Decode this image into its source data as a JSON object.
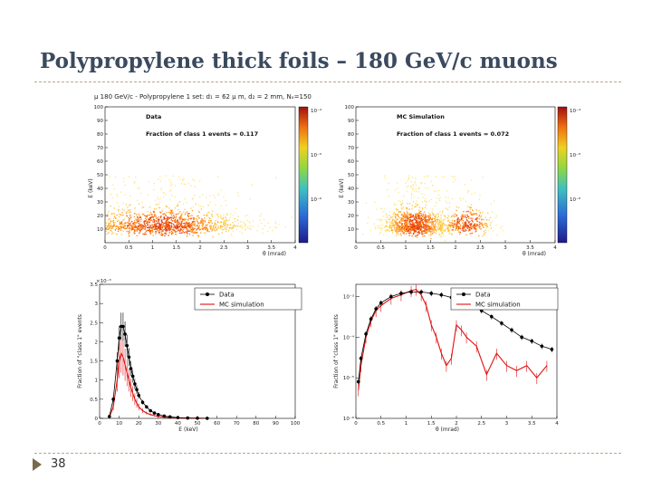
{
  "slide": {
    "title": "Polypropylene thick foils – 180 GeV/c muons",
    "number": "38",
    "plot_header": "μ 180 GeV/c - Polypropylene 1 set: d₁ = 62 μ m, d₂ = 2 mm, Nₒ=150"
  },
  "colors": {
    "data": "#000000",
    "mc": "#e01010",
    "title": "#3b4a5e",
    "rule": "#b8a88a"
  },
  "chart_data": [
    {
      "type": "heatmap",
      "annotation_1": "Data",
      "annotation_2": "Fraction of class 1 events = 0.117",
      "xlabel": "θ (mrad)",
      "ylabel": "E (keV)",
      "xlim": [
        0,
        4
      ],
      "ylim": [
        0,
        100
      ],
      "xticks": [
        "0",
        "0.5",
        "1",
        "1.5",
        "2",
        "2.5",
        "3",
        "3.5",
        "4"
      ],
      "yticks": [
        "10",
        "20",
        "30",
        "40",
        "50",
        "60",
        "70",
        "80",
        "90",
        "100"
      ],
      "colorbar_ticks": [
        "10⁻⁴",
        "10⁻⁵",
        "10⁻⁶"
      ],
      "clusters": [
        {
          "x": 1.2,
          "y": 13,
          "sx": 0.9,
          "sy": 5,
          "weight": 1.0
        }
      ]
    },
    {
      "type": "heatmap",
      "annotation_1": "MC Simulation",
      "annotation_2": "Fraction of class 1 events = 0.072",
      "xlabel": "θ (mrad)",
      "ylabel": "E (keV)",
      "xlim": [
        0,
        4
      ],
      "ylim": [
        0,
        100
      ],
      "xticks": [
        "0",
        "0.5",
        "1",
        "1.5",
        "2",
        "2.5",
        "3",
        "3.5",
        "4"
      ],
      "yticks": [
        "10",
        "20",
        "30",
        "40",
        "50",
        "60",
        "70",
        "80",
        "90",
        "100"
      ],
      "colorbar_ticks": [
        "10⁻⁴",
        "10⁻⁵",
        "10⁻⁶"
      ],
      "clusters": [
        {
          "x": 1.2,
          "y": 13,
          "sx": 0.35,
          "sy": 5,
          "weight": 1.0
        },
        {
          "x": 2.2,
          "y": 14,
          "sx": 0.3,
          "sy": 5,
          "weight": 0.35
        }
      ]
    },
    {
      "type": "line",
      "xlabel": "E (keV)",
      "ylabel": "Fraction of \"class 1\" events",
      "xlim": [
        0,
        100
      ],
      "ylim": [
        0,
        0.0035
      ],
      "multiplier": "×10⁻³",
      "xticks": [
        "0",
        "10",
        "20",
        "30",
        "40",
        "50",
        "60",
        "70",
        "80",
        "90",
        "100"
      ],
      "yticks": [
        "0",
        "0.5",
        "1",
        "1.5",
        "2",
        "2.5",
        "3",
        "3.5"
      ],
      "legend": [
        "Data",
        "MC simulation"
      ],
      "series": [
        {
          "name": "Data",
          "x": [
            5,
            7,
            9,
            10,
            11,
            12,
            13,
            14,
            15,
            16,
            17,
            18,
            19,
            20,
            22,
            24,
            26,
            28,
            30,
            33,
            36,
            40,
            45,
            50,
            55
          ],
          "values": [
            5e-05,
            0.0005,
            0.0015,
            0.0021,
            0.0024,
            0.0024,
            0.0022,
            0.0019,
            0.0016,
            0.0013,
            0.0011,
            0.0009,
            0.00075,
            0.0006,
            0.00042,
            0.0003,
            0.0002,
            0.00014,
            0.0001,
            6e-05,
            4e-05,
            2e-05,
            1e-05,
            5e-06,
            2e-06
          ]
        },
        {
          "name": "MC simulation",
          "x": [
            5,
            7,
            9,
            10,
            11,
            12,
            13,
            14,
            15,
            16,
            17,
            18,
            19,
            20,
            22,
            24,
            26,
            28,
            30,
            33,
            36,
            40,
            45,
            50,
            55
          ],
          "values": [
            3e-05,
            0.0003,
            0.001,
            0.0015,
            0.0017,
            0.0016,
            0.0014,
            0.0012,
            0.001,
            0.0008,
            0.00065,
            0.0005,
            0.0004,
            0.0003,
            0.0002,
            0.00014,
            0.0001,
            7e-05,
            5e-05,
            3e-05,
            2e-05,
            1e-05,
            5e-06,
            2e-06,
            1e-06
          ]
        }
      ]
    },
    {
      "type": "line",
      "xlabel": "θ (mrad)",
      "ylabel": "Fraction of \"class 1\" events",
      "xlim": [
        0,
        4
      ],
      "ylim": [
        1e-06,
        0.002
      ],
      "log_y": true,
      "xticks": [
        "0",
        "0.5",
        "1",
        "1.5",
        "2",
        "2.5",
        "3",
        "3.5",
        "4"
      ],
      "yticks": [
        "10⁻³",
        "10⁻⁴",
        "10⁻⁵",
        "10⁻⁶"
      ],
      "legend": [
        "Data",
        "MC simulation"
      ],
      "series": [
        {
          "name": "Data",
          "x": [
            0.05,
            0.1,
            0.2,
            0.3,
            0.4,
            0.5,
            0.7,
            0.9,
            1.1,
            1.3,
            1.5,
            1.7,
            1.9,
            2.1,
            2.3,
            2.5,
            2.7,
            2.9,
            3.1,
            3.3,
            3.5,
            3.7,
            3.9
          ],
          "values": [
            8e-06,
            3e-05,
            0.00012,
            0.00028,
            0.0005,
            0.0007,
            0.001,
            0.0012,
            0.0013,
            0.0013,
            0.0012,
            0.0011,
            0.00095,
            0.0008,
            0.0006,
            0.00045,
            0.00032,
            0.00022,
            0.00015,
            0.0001,
            8e-05,
            6e-05,
            5e-05
          ]
        },
        {
          "name": "MC simulation",
          "x": [
            0.05,
            0.1,
            0.2,
            0.3,
            0.4,
            0.5,
            0.7,
            0.9,
            1.1,
            1.2,
            1.3,
            1.4,
            1.5,
            1.6,
            1.7,
            1.8,
            1.9,
            2.0,
            2.1,
            2.2,
            2.4,
            2.6,
            2.8,
            3.0,
            3.2,
            3.4,
            3.6,
            3.8
          ],
          "values": [
            5e-06,
            2e-05,
            0.0001,
            0.00025,
            0.00045,
            0.0006,
            0.0009,
            0.0011,
            0.0014,
            0.0015,
            0.0011,
            0.0006,
            0.0002,
            0.0001,
            4e-05,
            2e-05,
            3e-05,
            0.0002,
            0.00015,
            0.0001,
            6e-05,
            1.2e-05,
            4e-05,
            2e-05,
            1.5e-05,
            2e-05,
            1e-05,
            2e-05
          ]
        }
      ]
    }
  ]
}
